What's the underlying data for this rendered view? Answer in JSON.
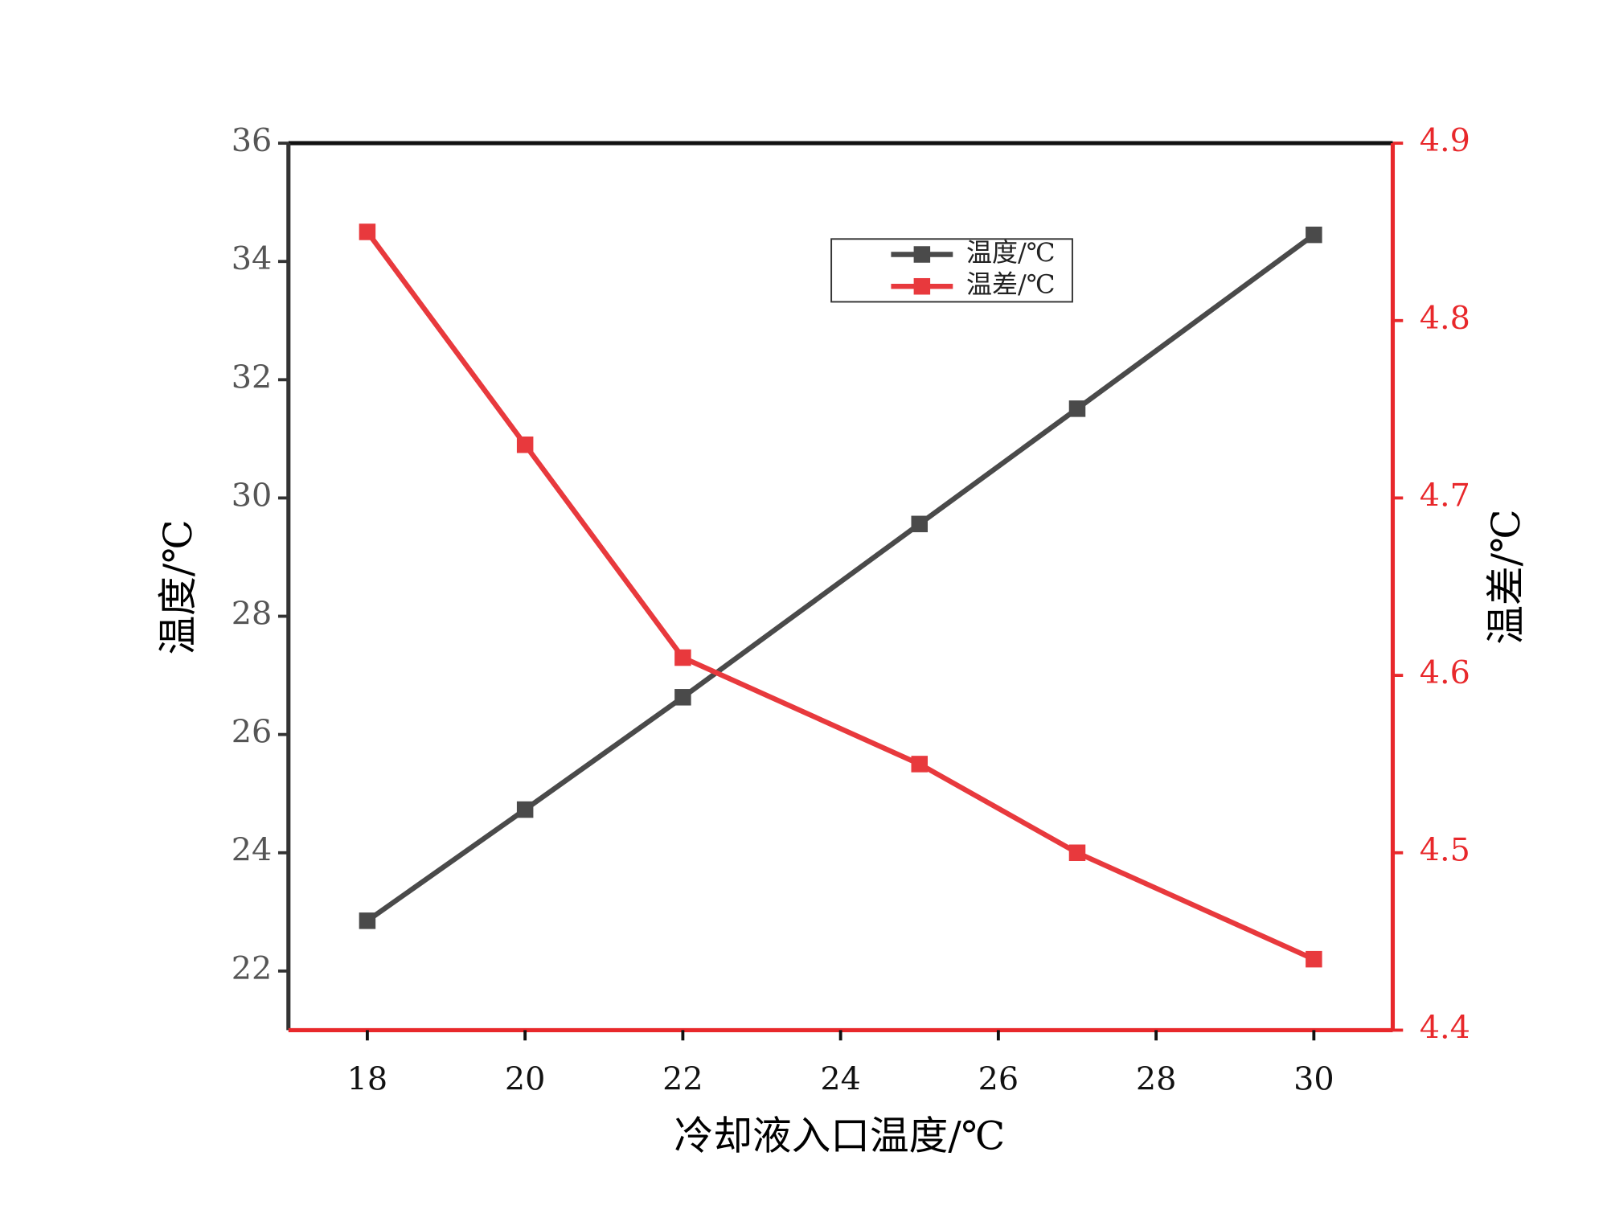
{
  "chart_data": {
    "type": "line",
    "x_label": "冷却液入口温度/℃",
    "y_label": "温度/℃",
    "y2_label": "温差/℃",
    "x": [
      18,
      20,
      22,
      25,
      27,
      30
    ],
    "xlim": [
      17,
      31
    ],
    "xticks": [
      18,
      20,
      22,
      24,
      26,
      28,
      30
    ],
    "ylim": [
      21,
      36
    ],
    "yticks": [
      22,
      24,
      26,
      28,
      30,
      32,
      34,
      36
    ],
    "y2lim": [
      4.4,
      4.9
    ],
    "y2ticks": [
      4.4,
      4.5,
      4.6,
      4.7,
      4.8,
      4.9
    ],
    "y2_color": "#e8282b",
    "series": [
      {
        "name": "温度/℃",
        "color": "#4a4a4a",
        "values": [
          22.85,
          24.73,
          26.63,
          29.56,
          31.51,
          34.45
        ]
      },
      {
        "name": "温差/℃",
        "color": "#e8393d",
        "axis": "y2",
        "values": [
          4.85,
          4.73,
          4.61,
          4.55,
          4.5,
          4.44
        ]
      }
    ],
    "legend": "upper-right"
  }
}
